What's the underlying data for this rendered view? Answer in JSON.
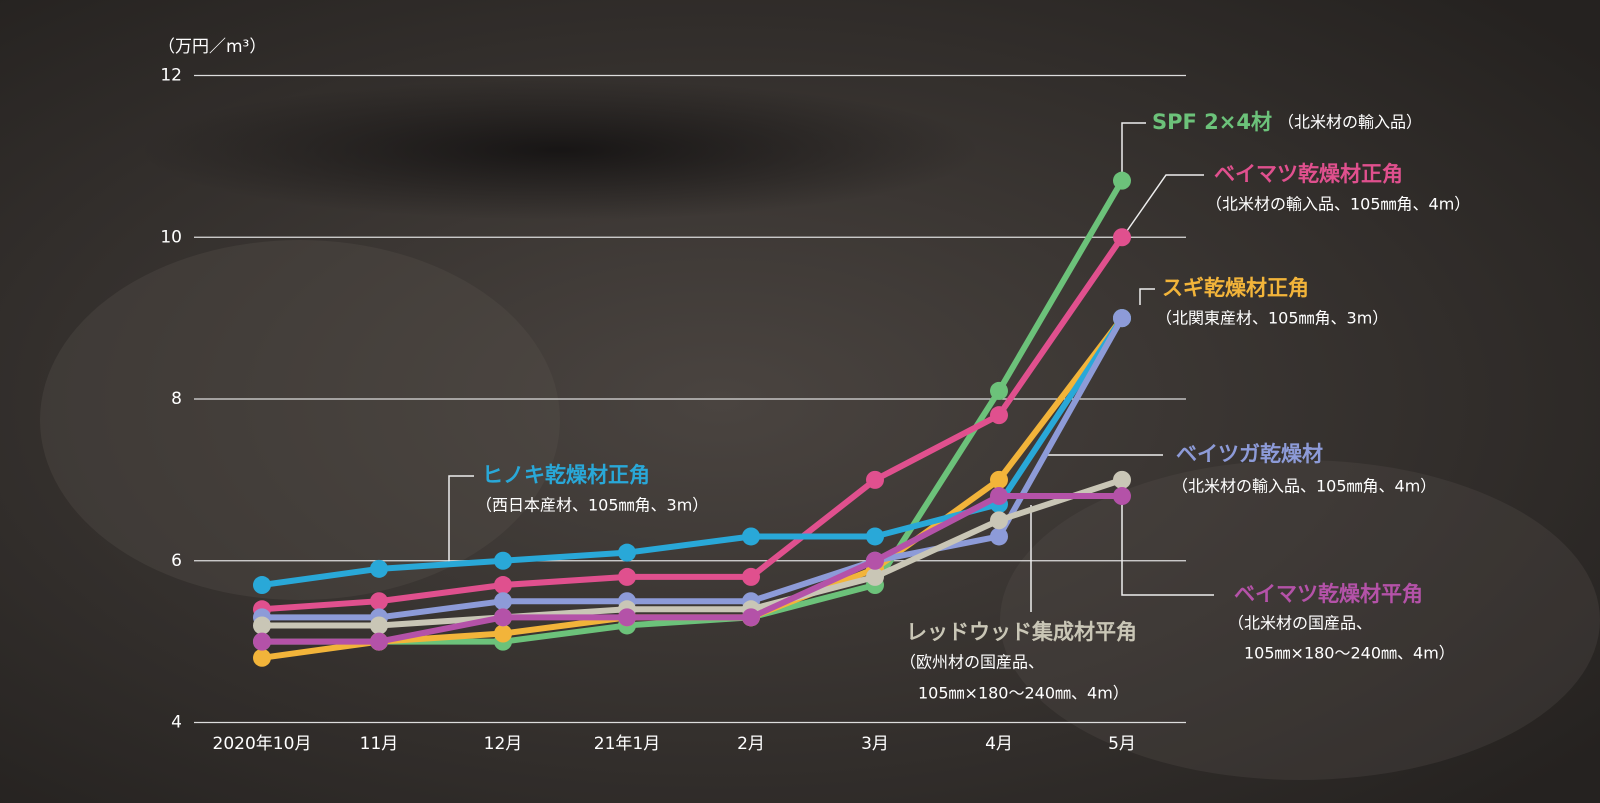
{
  "chart_data": {
    "type": "line",
    "y_unit": "（万円／m³）",
    "categories": [
      "2020年10月",
      "11月",
      "12月",
      "21年1月",
      "2月",
      "3月",
      "4月",
      "5月"
    ],
    "ylim": [
      4,
      12
    ],
    "yticks": [
      4,
      6,
      8,
      10,
      12
    ],
    "grid": true,
    "series": [
      {
        "name": "SPF 2×4材",
        "note": [
          "（北米材の輸入品）"
        ],
        "color": "#6cc27a",
        "values": [
          5.0,
          5.0,
          5.0,
          5.2,
          5.3,
          5.7,
          8.1,
          10.7
        ]
      },
      {
        "name": "ベイマツ乾燥材正角",
        "note": [
          "（北米材の輸入品、105㎜角、4m）"
        ],
        "color": "#e0508e",
        "values": [
          5.4,
          5.5,
          5.7,
          5.8,
          5.8,
          7.0,
          7.8,
          10.0
        ]
      },
      {
        "name": "スギ乾燥材正角",
        "note": [
          "（北関東産材、105㎜角、3m）"
        ],
        "color": "#f2b43a",
        "values": [
          4.8,
          5.0,
          5.1,
          5.3,
          5.3,
          5.9,
          7.0,
          9.0
        ]
      },
      {
        "name": "ヒノキ乾燥材正角",
        "note": [
          "（西日本産材、105㎜角、3m）"
        ],
        "color": "#29a8d8",
        "values": [
          5.7,
          5.9,
          6.0,
          6.1,
          6.3,
          6.3,
          6.7,
          9.0
        ]
      },
      {
        "name": "ベイツガ乾燥材",
        "note": [
          "（北米材の輸入品、105㎜角、4m）"
        ],
        "color": "#8d9bd8",
        "values": [
          5.3,
          5.3,
          5.5,
          5.5,
          5.5,
          6.0,
          6.3,
          9.0
        ]
      },
      {
        "name": "レッドウッド集成材平角",
        "note": [
          "（欧州材の国産品、",
          "105㎜×180～240㎜、4m）"
        ],
        "color": "#c9c6b6",
        "values": [
          5.2,
          5.2,
          5.3,
          5.4,
          5.4,
          5.8,
          6.5,
          7.0
        ]
      },
      {
        "name": "ベイマツ乾燥材平角",
        "note": [
          "（北米材の国産品、",
          "105㎜×180～240㎜、4m）"
        ],
        "color": "#b452a8",
        "values": [
          5.0,
          5.0,
          5.3,
          5.3,
          5.3,
          6.0,
          6.8,
          6.8
        ]
      }
    ]
  }
}
